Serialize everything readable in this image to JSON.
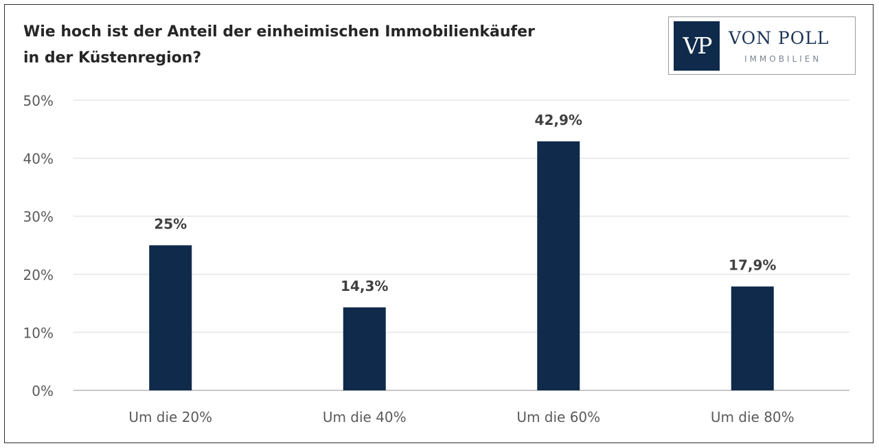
{
  "chart_data": {
    "type": "bar",
    "title_lines": [
      "Wie hoch ist der Anteil der einheimischen Immobilienkäufer",
      "in der Küstenregion?"
    ],
    "categories": [
      "Um die 20%",
      "Um die 40%",
      "Um die 60%",
      "Um die 80%"
    ],
    "values": [
      25,
      14.3,
      42.9,
      17.9
    ],
    "data_labels": [
      "25%",
      "14,3%",
      "42,9%",
      "17,9%"
    ],
    "yticks": [
      0,
      10,
      20,
      30,
      40,
      50
    ],
    "ytick_labels": [
      "0%",
      "10%",
      "20%",
      "30%",
      "40%",
      "50%"
    ],
    "ylim": [
      0,
      50
    ],
    "grid": true,
    "legend": "none",
    "bar_color": "#0f2a4a"
  },
  "logo": {
    "mark": "VP",
    "name": "VON POLL",
    "sub": "IMMOBILIEN"
  }
}
